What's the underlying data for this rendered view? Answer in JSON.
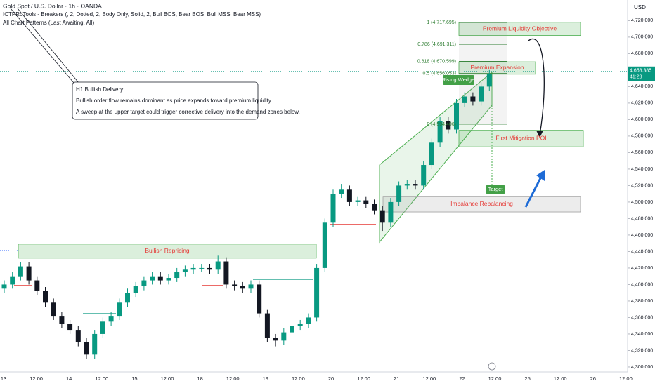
{
  "chart_data": {
    "type": "candlestick",
    "title": "Gold Spot / U.S. Dollar · 1h · OANDA",
    "indicators": [
      "ICTPRoTools - Breakers (, 2, Dotted, 2, Body Only, Solid, 2, Bull BOS, Bear BOS, Bull MSS, Bear MSS)",
      "All Chart Patterns (Last Awaiting, All)"
    ],
    "currency": "USD",
    "x_labels": [
      "13",
      "12:00",
      "14",
      "12:00",
      "15",
      "12:00",
      "18",
      "12:00",
      "19",
      "12:00",
      "20",
      "12:00",
      "21",
      "12:00",
      "22",
      "12:00",
      "25",
      "12:00",
      "26",
      "12:00"
    ],
    "open": [
      4395,
      4400,
      4410,
      4422,
      4405,
      4392,
      4378,
      4362,
      4352,
      4345,
      4330,
      4315,
      4340,
      4355,
      4362,
      4378,
      4390,
      4398,
      4405,
      4410,
      4405,
      4408,
      4415,
      4418,
      4420,
      4420,
      4418,
      4428,
      4400,
      4398,
      4395,
      4400,
      4365,
      4335,
      4332,
      4342,
      4350,
      4352,
      4360,
      4420,
      4475,
      4510,
      4515,
      4500,
      4502,
      4498,
      4490,
      4475,
      4500,
      4520,
      4522,
      4520,
      4545,
      4572,
      4598,
      4588,
      4620,
      4628,
      4622,
      4640
    ],
    "high": [
      4405,
      4415,
      4427,
      4427,
      4410,
      4397,
      4383,
      4367,
      4357,
      4350,
      4335,
      4345,
      4360,
      4367,
      4383,
      4395,
      4403,
      4410,
      4415,
      4415,
      4413,
      4420,
      4423,
      4425,
      4425,
      4425,
      4435,
      4433,
      4405,
      4403,
      4405,
      4405,
      4370,
      4340,
      4347,
      4355,
      4357,
      4365,
      4425,
      4480,
      4515,
      4522,
      4520,
      4507,
      4507,
      4503,
      4495,
      4505,
      4525,
      4527,
      4527,
      4550,
      4577,
      4603,
      4603,
      4625,
      4633,
      4633,
      4645,
      4660
    ],
    "low": [
      4390,
      4395,
      4405,
      4400,
      4387,
      4373,
      4357,
      4347,
      4340,
      4325,
      4310,
      4310,
      4335,
      4350,
      4357,
      4373,
      4385,
      4393,
      4400,
      4400,
      4400,
      4403,
      4410,
      4413,
      4415,
      4413,
      4413,
      4395,
      4393,
      4390,
      4390,
      4360,
      4330,
      4325,
      4327,
      4337,
      4345,
      4347,
      4355,
      4415,
      4470,
      4505,
      4495,
      4495,
      4493,
      4485,
      4465,
      4470,
      4495,
      4515,
      4515,
      4515,
      4540,
      4567,
      4583,
      4583,
      4615,
      4617,
      4617,
      4635
    ],
    "close": [
      4400,
      4410,
      4422,
      4405,
      4392,
      4378,
      4362,
      4352,
      4345,
      4330,
      4315,
      4340,
      4355,
      4362,
      4378,
      4390,
      4398,
      4405,
      4410,
      4405,
      4408,
      4415,
      4418,
      4420,
      4420,
      4418,
      4428,
      4400,
      4398,
      4395,
      4400,
      4365,
      4335,
      4332,
      4342,
      4350,
      4352,
      4360,
      4420,
      4475,
      4510,
      4515,
      4500,
      4502,
      4498,
      4490,
      4475,
      4500,
      4520,
      4522,
      4520,
      4545,
      4572,
      4598,
      4588,
      4620,
      4628,
      4622,
      4640,
      4655
    ],
    "up_color": "#089981",
    "down_color": "#131722",
    "ylim": [
      4294,
      4745
    ],
    "yticks": [
      {
        "value": 4300,
        "label": "4,300.000"
      },
      {
        "value": 4320,
        "label": "4,320.000"
      },
      {
        "value": 4340,
        "label": "4,340.000"
      },
      {
        "value": 4360,
        "label": "4,360.000"
      },
      {
        "value": 4380,
        "label": "4,380.000"
      },
      {
        "value": 4400,
        "label": "4,400.000"
      },
      {
        "value": 4420,
        "label": "4,420.000"
      },
      {
        "value": 4440,
        "label": "4,440.000"
      },
      {
        "value": 4460,
        "label": "4,460.000"
      },
      {
        "value": 4480,
        "label": "4,480.000"
      },
      {
        "value": 4500,
        "label": "4,500.000"
      },
      {
        "value": 4520,
        "label": "4,520.000"
      },
      {
        "value": 4540,
        "label": "4,540.000"
      },
      {
        "value": 4560,
        "label": "4,560.000"
      },
      {
        "value": 4580,
        "label": "4,580.000"
      },
      {
        "value": 4600,
        "label": "4,600.000"
      },
      {
        "value": 4620,
        "label": "4,620.000"
      },
      {
        "value": 4640,
        "label": "4,640.000"
      },
      {
        "value": 4660,
        "label": "4,660.000"
      },
      {
        "value": 4680,
        "label": "4,680.000"
      },
      {
        "value": 4700,
        "label": "4,700.000"
      },
      {
        "value": 4720,
        "label": "4,720.000"
      }
    ],
    "last_price": {
      "value": 4658.385,
      "label": "4,658.385"
    },
    "countdown": "41:28",
    "zones": [
      {
        "label": "Premium Liquidity Objective",
        "top": 4718,
        "bottom": 4702,
        "color": "#4caf50"
      },
      {
        "label": "Premium Expansion",
        "top": 4670,
        "bottom": 4655,
        "color": "#4caf50"
      },
      {
        "label": "First Mitigation POI",
        "top": 4587,
        "bottom": 4567,
        "color": "#4caf50"
      },
      {
        "label": "Imbalance Rebalancing",
        "top": 4507,
        "bottom": 4488,
        "color": "#9e9e9e"
      },
      {
        "label": "Bullish Repricing",
        "top": 4449,
        "bottom": 4432,
        "color": "#4caf50"
      }
    ],
    "fib_levels": [
      {
        "value": 4717.695,
        "label": "1 (4,717.695)"
      },
      {
        "value": 4691.311,
        "label": "0.786 (4,691.311)"
      },
      {
        "value": 4670.599,
        "label": "0.618 (4,670.599)"
      },
      {
        "value": 4656.053,
        "label": "0.5 (4,656.053)"
      },
      {
        "value": 4594.406,
        "label": "0 (4,594.406)"
      }
    ],
    "pattern": "Rising Wedge",
    "target": "Target",
    "note": {
      "title": "H1 Bullish Delivery:",
      "lines": [
        "Bullish order flow remains dominant as price expands toward premium liquidity.",
        "A sweep at the upper target could trigger corrective delivery into the demand zones below."
      ]
    }
  }
}
